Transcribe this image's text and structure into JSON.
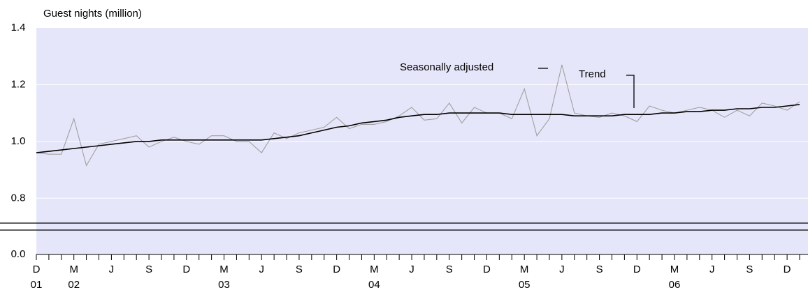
{
  "chart_data": {
    "type": "line",
    "y_axis_label": "Guest nights (million)",
    "categories": [
      "D",
      null,
      null,
      "M",
      null,
      null,
      "J",
      null,
      null,
      "S",
      null,
      null,
      "D",
      null,
      null,
      "M",
      null,
      null,
      "J",
      null,
      null,
      "S",
      null,
      null,
      "D",
      null,
      null,
      "M",
      null,
      null,
      "J",
      null,
      null,
      "S",
      null,
      null,
      "D",
      null,
      null,
      "M",
      null,
      null,
      "J",
      null,
      null,
      "S",
      null,
      null,
      "D",
      null,
      null,
      "M",
      null,
      null,
      "J",
      null,
      null,
      "S",
      null,
      null,
      "D",
      null
    ],
    "category_years": [
      "01",
      null,
      null,
      "02",
      null,
      null,
      null,
      null,
      null,
      null,
      null,
      null,
      null,
      null,
      null,
      "03",
      null,
      null,
      null,
      null,
      null,
      null,
      null,
      null,
      null,
      null,
      null,
      "04",
      null,
      null,
      null,
      null,
      null,
      null,
      null,
      null,
      null,
      null,
      null,
      "05",
      null,
      null,
      null,
      null,
      null,
      null,
      null,
      null,
      null,
      null,
      null,
      "06",
      null,
      null,
      null,
      null,
      null,
      null,
      null,
      null,
      null,
      null
    ],
    "series": [
      {
        "name": "Seasonally adjusted",
        "color": "#a0a0a0",
        "values": [
          0.96,
          0.955,
          0.955,
          1.08,
          0.915,
          0.99,
          1.0,
          1.01,
          1.02,
          0.98,
          1.0,
          1.015,
          1.0,
          0.99,
          1.02,
          1.02,
          1.0,
          1.0,
          0.96,
          1.03,
          1.01,
          1.03,
          1.04,
          1.05,
          1.085,
          1.045,
          1.06,
          1.06,
          1.07,
          1.09,
          1.12,
          1.075,
          1.08,
          1.135,
          1.065,
          1.12,
          1.1,
          1.1,
          1.08,
          1.185,
          1.02,
          1.08,
          1.27,
          1.1,
          1.09,
          1.085,
          1.1,
          1.09,
          1.07,
          1.125,
          1.11,
          1.1,
          1.11,
          1.12,
          1.11,
          1.085,
          1.11,
          1.09,
          1.135,
          1.125,
          1.11,
          1.14
        ]
      },
      {
        "name": "Trend",
        "color": "#000000",
        "values": [
          0.96,
          0.965,
          0.97,
          0.975,
          0.98,
          0.985,
          0.99,
          0.995,
          1.0,
          1.0,
          1.005,
          1.005,
          1.005,
          1.005,
          1.005,
          1.005,
          1.005,
          1.005,
          1.005,
          1.01,
          1.015,
          1.02,
          1.03,
          1.04,
          1.05,
          1.055,
          1.065,
          1.07,
          1.075,
          1.085,
          1.09,
          1.095,
          1.095,
          1.1,
          1.1,
          1.1,
          1.1,
          1.1,
          1.095,
          1.095,
          1.095,
          1.095,
          1.095,
          1.09,
          1.09,
          1.09,
          1.09,
          1.095,
          1.095,
          1.095,
          1.1,
          1.1,
          1.105,
          1.105,
          1.11,
          1.11,
          1.115,
          1.115,
          1.12,
          1.12,
          1.125,
          1.13
        ]
      }
    ],
    "ylim": [
      0,
      1.4
    ],
    "axis_break": [
      0,
      0.7
    ],
    "yticks": [
      {
        "value": 0,
        "label": "0.0"
      },
      0.8,
      {
        "value": 1,
        "label": "1.0"
      },
      1.2,
      1.4
    ],
    "grid": true,
    "background": "#e6e6fa"
  }
}
